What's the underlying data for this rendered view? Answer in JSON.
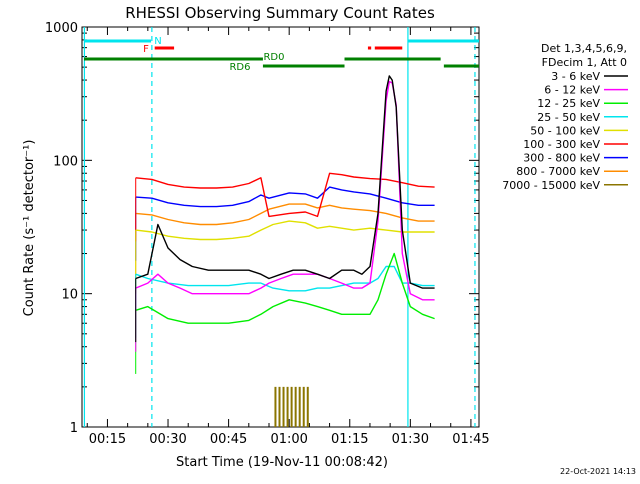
{
  "chart_data": {
    "type": "line",
    "title": "RHESSI Observing Summary Count Rates",
    "xlabel": "Start Time (19-Nov-11 00:08:42)",
    "ylabel": "Count Rate (s⁻¹ detector⁻¹)",
    "ylog": true,
    "ylim": [
      1,
      1000
    ],
    "xlim": [
      8.7,
      107
    ],
    "x_units": "minutes after 00:00 UT",
    "x_ticks": [
      {
        "x": 15,
        "label": "00:15"
      },
      {
        "x": 30,
        "label": "00:30"
      },
      {
        "x": 45,
        "label": "00:45"
      },
      {
        "x": 60,
        "label": "01:00"
      },
      {
        "x": 75,
        "label": "01:15"
      },
      {
        "x": 90,
        "label": "01:30"
      },
      {
        "x": 105,
        "label": "01:45"
      }
    ],
    "y_ticks": [
      {
        "y": 1,
        "label": "1"
      },
      {
        "y": 10,
        "label": "10"
      },
      {
        "y": 100,
        "label": "100"
      },
      {
        "y": 1000,
        "label": "1000"
      }
    ],
    "footer_date": "22-Oct-2021 14:13",
    "legend_header": [
      "Det 1,3,4,5,6,9,",
      "FDecim 1, Att 0"
    ],
    "series": [
      {
        "name": "3 - 6 keV",
        "color": "#000000",
        "x": [
          22,
          25,
          27.5,
          30,
          33,
          36,
          40,
          45,
          50,
          53,
          55,
          58,
          61,
          64,
          67,
          70,
          73,
          76,
          78,
          80,
          82,
          84,
          84.8,
          85.5,
          86.5,
          88,
          90,
          93,
          96
        ],
        "y": [
          13,
          14,
          33,
          22,
          18,
          16,
          15,
          15,
          15,
          14,
          13,
          14,
          15,
          15,
          14,
          13,
          15,
          15,
          14,
          16,
          40,
          330,
          430,
          400,
          250,
          30,
          12,
          11,
          11
        ]
      },
      {
        "name": "6 - 12 keV",
        "color": "#ff00ff",
        "x": [
          22,
          25,
          27.5,
          30,
          33,
          36,
          40,
          45,
          50,
          53,
          55,
          58,
          61,
          64,
          67,
          70,
          73,
          76,
          78,
          80,
          82,
          84,
          84.8,
          85.5,
          86.5,
          88,
          90,
          93,
          96
        ],
        "y": [
          11,
          12,
          14,
          12,
          11,
          10,
          10,
          10,
          10,
          11,
          12,
          13,
          14,
          14,
          14,
          13,
          12,
          11,
          11,
          12,
          35,
          280,
          390,
          380,
          260,
          20,
          10,
          9,
          9
        ]
      },
      {
        "name": "12 - 25 keV",
        "color": "#00ee00",
        "x": [
          22,
          25,
          30,
          35,
          40,
          45,
          50,
          53,
          56,
          60,
          64,
          67,
          70,
          73,
          76,
          80,
          82,
          84,
          86,
          88,
          90,
          93,
          96
        ],
        "y": [
          7.5,
          8,
          6.5,
          6,
          6,
          6,
          6.3,
          7,
          8,
          9,
          8.5,
          8,
          7.5,
          7,
          7,
          7,
          9,
          14,
          20,
          12,
          8,
          7,
          6.5
        ]
      },
      {
        "name": "25 - 50 keV",
        "color": "#00e5ee",
        "x": [
          22,
          25,
          30,
          35,
          40,
          45,
          50,
          53,
          56,
          60,
          64,
          67,
          70,
          73,
          76,
          80,
          82,
          84,
          86,
          88,
          90,
          93,
          96
        ],
        "y": [
          14,
          13,
          12,
          11.5,
          11.5,
          11.5,
          12,
          12,
          11,
          10.5,
          10.5,
          11,
          11,
          11.5,
          12,
          12,
          13,
          16,
          16,
          12,
          12,
          11.5,
          11.5
        ]
      },
      {
        "name": "50 - 100 keV",
        "color": "#e0e000",
        "x": [
          22,
          26,
          30,
          34,
          38,
          42,
          46,
          50,
          53,
          56,
          60,
          64,
          67,
          70,
          73,
          76,
          80,
          84,
          88,
          92,
          96
        ],
        "y": [
          30,
          29,
          27,
          26,
          25.5,
          25.5,
          26,
          27,
          30,
          33,
          35,
          34,
          31,
          32,
          31,
          30,
          31,
          30,
          29,
          29,
          29
        ]
      },
      {
        "name": "100 - 300 keV",
        "color": "#ff0000",
        "x": [
          22,
          26,
          30,
          34,
          38,
          42,
          46,
          50,
          53,
          55,
          60,
          64,
          67,
          70,
          73,
          76,
          80,
          84,
          88,
          92,
          96
        ],
        "y": [
          74,
          72,
          66,
          63,
          62,
          62,
          63,
          67,
          74,
          38,
          40,
          41,
          38,
          80,
          78,
          75,
          73,
          72,
          68,
          64,
          63
        ]
      },
      {
        "name": "300 - 800 keV",
        "color": "#0000ff",
        "x": [
          22,
          26,
          30,
          34,
          38,
          42,
          46,
          50,
          53,
          55,
          60,
          64,
          67,
          70,
          73,
          76,
          80,
          84,
          88,
          92,
          96
        ],
        "y": [
          53,
          52,
          48,
          46,
          45,
          45,
          46,
          49,
          55,
          52,
          57,
          56,
          52,
          63,
          60,
          58,
          56,
          52,
          48,
          46,
          46
        ]
      },
      {
        "name": "800 - 7000 keV",
        "color": "#ff8c00",
        "x": [
          22,
          26,
          30,
          34,
          38,
          42,
          46,
          50,
          53,
          55,
          60,
          64,
          67,
          70,
          73,
          76,
          80,
          84,
          88,
          92,
          96
        ],
        "y": [
          40,
          39,
          36,
          34,
          33,
          33,
          34,
          36,
          40,
          43,
          47,
          47,
          44,
          46,
          44,
          43,
          42,
          40,
          37,
          35,
          35
        ]
      },
      {
        "name": "7000 - 15000 keV",
        "color": "#8b7500",
        "x": [
          56.6,
          57.6,
          58.6,
          59.6,
          60.6,
          61.6,
          62.6,
          63.6,
          64.6
        ],
        "y": [
          2,
          2,
          2,
          2,
          2,
          2,
          2,
          2,
          2
        ]
      }
    ],
    "flag_bars": [
      {
        "label": "N",
        "color": "#00e5ee",
        "row": 1,
        "segments": [
          [
            9.2,
            25.8
          ],
          [
            89.5,
            107
          ]
        ]
      },
      {
        "label": "F",
        "color": "#ff0000",
        "row": 2,
        "segments": [
          [
            26.7,
            31.5
          ],
          [
            79.5,
            80.3
          ],
          [
            81.2,
            88
          ]
        ]
      },
      {
        "label": "RD0",
        "color": "#008000",
        "row": 3,
        "segments": [
          [
            9.2,
            53.5
          ],
          [
            73.7,
            97.5
          ]
        ]
      },
      {
        "label": "RD6",
        "color": "#008000",
        "row": 4,
        "segments": [
          [
            53.5,
            73.7
          ],
          [
            98.3,
            107
          ]
        ]
      }
    ],
    "vlines": [
      {
        "x": 9.3,
        "color": "#00e5ee",
        "dash": false
      },
      {
        "x": 26.0,
        "color": "#00e5ee",
        "dash": true
      },
      {
        "x": 89.4,
        "color": "#00e5ee",
        "dash": false
      },
      {
        "x": 106.0,
        "color": "#00e5ee",
        "dash": true
      }
    ]
  }
}
